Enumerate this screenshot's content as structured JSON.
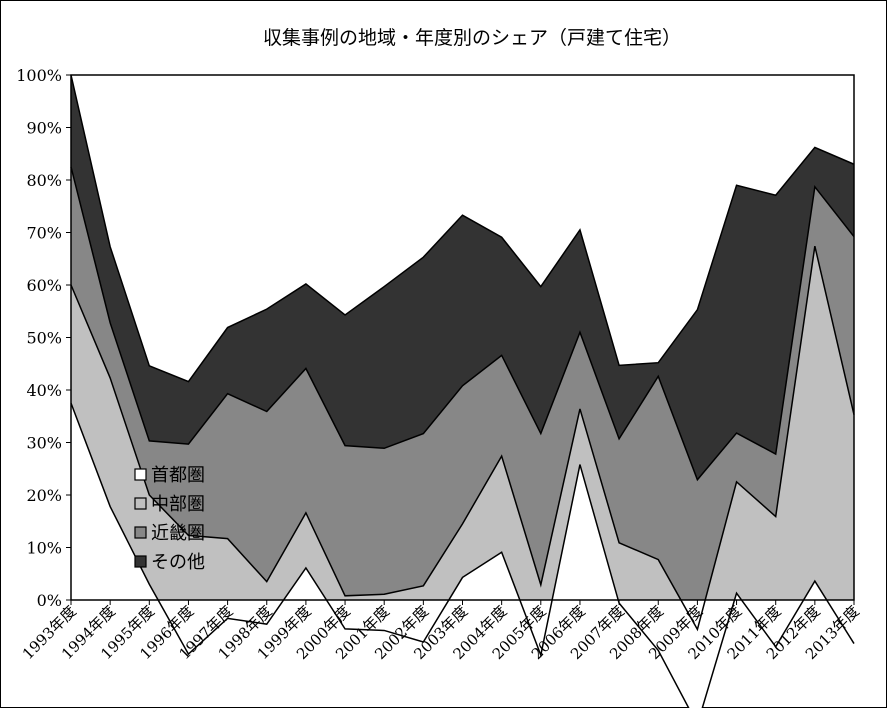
{
  "chart_data": {
    "type": "area",
    "stacked": true,
    "normalized": true,
    "title": "収集事例の地域・年度別のシェア（戸建て住宅）",
    "xlabel": "",
    "ylabel": "",
    "ylim": [
      0,
      100
    ],
    "y_ticks": [
      "0%",
      "10%",
      "20%",
      "30%",
      "40%",
      "50%",
      "60%",
      "70%",
      "80%",
      "90%",
      "100%"
    ],
    "categories": [
      "1993年度",
      "1994年度",
      "1995年度",
      "1996年度",
      "1997年度",
      "1998年度",
      "1999年度",
      "2000年度",
      "2001年度",
      "2002年度",
      "2003年度",
      "2004年度",
      "2005年度",
      "2006年度",
      "2007年度",
      "2008年度",
      "2009年度",
      "2010年度",
      "2011年度",
      "2012年度",
      "2013年度"
    ],
    "grid": false,
    "legend_position": "bottom-left",
    "series": [
      {
        "name": "首都圏",
        "color": "#ffffff",
        "values": [
          37.5,
          17.8,
          3.0,
          -10.3,
          -3.5,
          -4.6,
          6.1,
          -5.5,
          -5.8,
          -8.0,
          4.3,
          9.1,
          -10.5,
          25.8,
          -0.6,
          -9.6,
          -23.7,
          1.3,
          -8.9,
          3.6,
          -8.3
        ]
      },
      {
        "name": "中部圏",
        "color": "#c0c0c0",
        "values": [
          22.5,
          24.5,
          17.0,
          22.6,
          15.2,
          8.1,
          10.5,
          6.3,
          6.9,
          10.7,
          10.2,
          18.3,
          13.4,
          10.6,
          11.5,
          17.3,
          18.1,
          21.2,
          24.8,
          63.8,
          43.6
        ]
      },
      {
        "name": "近畿圏",
        "color": "#878787",
        "values": [
          22.5,
          10.5,
          10.3,
          17.4,
          27.6,
          32.4,
          27.5,
          28.6,
          27.8,
          29.0,
          26.3,
          19.2,
          28.8,
          14.6,
          19.8,
          34.9,
          28.5,
          9.3,
          11.9,
          11.3,
          33.9
        ]
      },
      {
        "name": "その他",
        "color": "#333333",
        "values": [
          17.5,
          14.5,
          14.3,
          11.9,
          12.6,
          19.5,
          16.1,
          24.9,
          30.8,
          33.6,
          32.5,
          22.5,
          28.0,
          19.5,
          14.0,
          2.6,
          32.4,
          47.2,
          49.3,
          7.5,
          13.8
        ]
      }
    ]
  }
}
